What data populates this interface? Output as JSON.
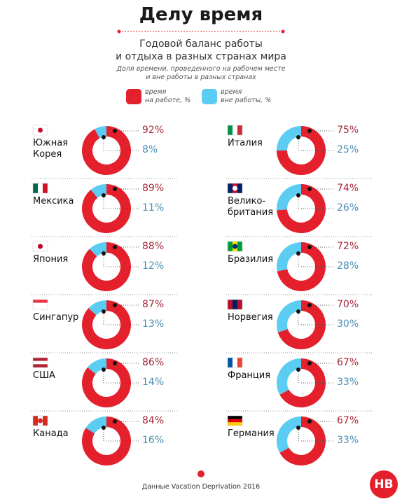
{
  "header": {
    "title": "Делу время",
    "subtitle": "Годовой баланс работы\nи отдыха в разных странах мира",
    "description": "Доля времени, проведенного на рабочем месте\nи вне работы в разных странах"
  },
  "legend": [
    {
      "name": "время\nна работе, %",
      "color": "#e3202b"
    },
    {
      "name": "время\nвне работы, %",
      "color": "#5ccdf2"
    }
  ],
  "chart_data": [
    {
      "type": "donut",
      "title": "Южная\nКорея",
      "values": [
        92,
        8
      ],
      "value_labels": [
        "92%",
        "8%"
      ],
      "colors": [
        "#e3202b",
        "#5ccdf2"
      ]
    },
    {
      "type": "donut",
      "title": "Италия",
      "values": [
        75,
        25
      ],
      "value_labels": [
        "75%",
        "25%"
      ],
      "colors": [
        "#e3202b",
        "#5ccdf2"
      ]
    },
    {
      "type": "donut",
      "title": "Мексика",
      "values": [
        89,
        11
      ],
      "value_labels": [
        "89%",
        "11%"
      ],
      "colors": [
        "#e3202b",
        "#5ccdf2"
      ]
    },
    {
      "type": "donut",
      "title": "Велико-\nбритания",
      "values": [
        74,
        26
      ],
      "value_labels": [
        "74%",
        "26%"
      ],
      "colors": [
        "#e3202b",
        "#5ccdf2"
      ]
    },
    {
      "type": "donut",
      "title": "Япония",
      "values": [
        88,
        12
      ],
      "value_labels": [
        "88%",
        "12%"
      ],
      "colors": [
        "#e3202b",
        "#5ccdf2"
      ]
    },
    {
      "type": "donut",
      "title": "Бразилия",
      "values": [
        72,
        28
      ],
      "value_labels": [
        "72%",
        "28%"
      ],
      "colors": [
        "#e3202b",
        "#5ccdf2"
      ]
    },
    {
      "type": "donut",
      "title": "Сингапур",
      "values": [
        87,
        13
      ],
      "value_labels": [
        "87%",
        "13%"
      ],
      "colors": [
        "#e3202b",
        "#5ccdf2"
      ]
    },
    {
      "type": "donut",
      "title": "Норвегия",
      "values": [
        70,
        30
      ],
      "value_labels": [
        "70%",
        "30%"
      ],
      "colors": [
        "#e3202b",
        "#5ccdf2"
      ]
    },
    {
      "type": "donut",
      "title": "США",
      "values": [
        86,
        14
      ],
      "value_labels": [
        "86%",
        "14%"
      ],
      "colors": [
        "#e3202b",
        "#5ccdf2"
      ]
    },
    {
      "type": "donut",
      "title": "Франция",
      "values": [
        67,
        33
      ],
      "value_labels": [
        "67%",
        "33%"
      ],
      "colors": [
        "#e3202b",
        "#5ccdf2"
      ]
    },
    {
      "type": "donut",
      "title": "Канада",
      "values": [
        84,
        16
      ],
      "value_labels": [
        "84%",
        "16%"
      ],
      "colors": [
        "#e3202b",
        "#5ccdf2"
      ]
    },
    {
      "type": "donut",
      "title": "Германия",
      "values": [
        67,
        33
      ],
      "value_labels": [
        "67%",
        "33%"
      ],
      "colors": [
        "#e3202b",
        "#5ccdf2"
      ]
    }
  ],
  "footer": {
    "source": "Данные Vacation Deprivation 2016",
    "logo": "НВ"
  }
}
